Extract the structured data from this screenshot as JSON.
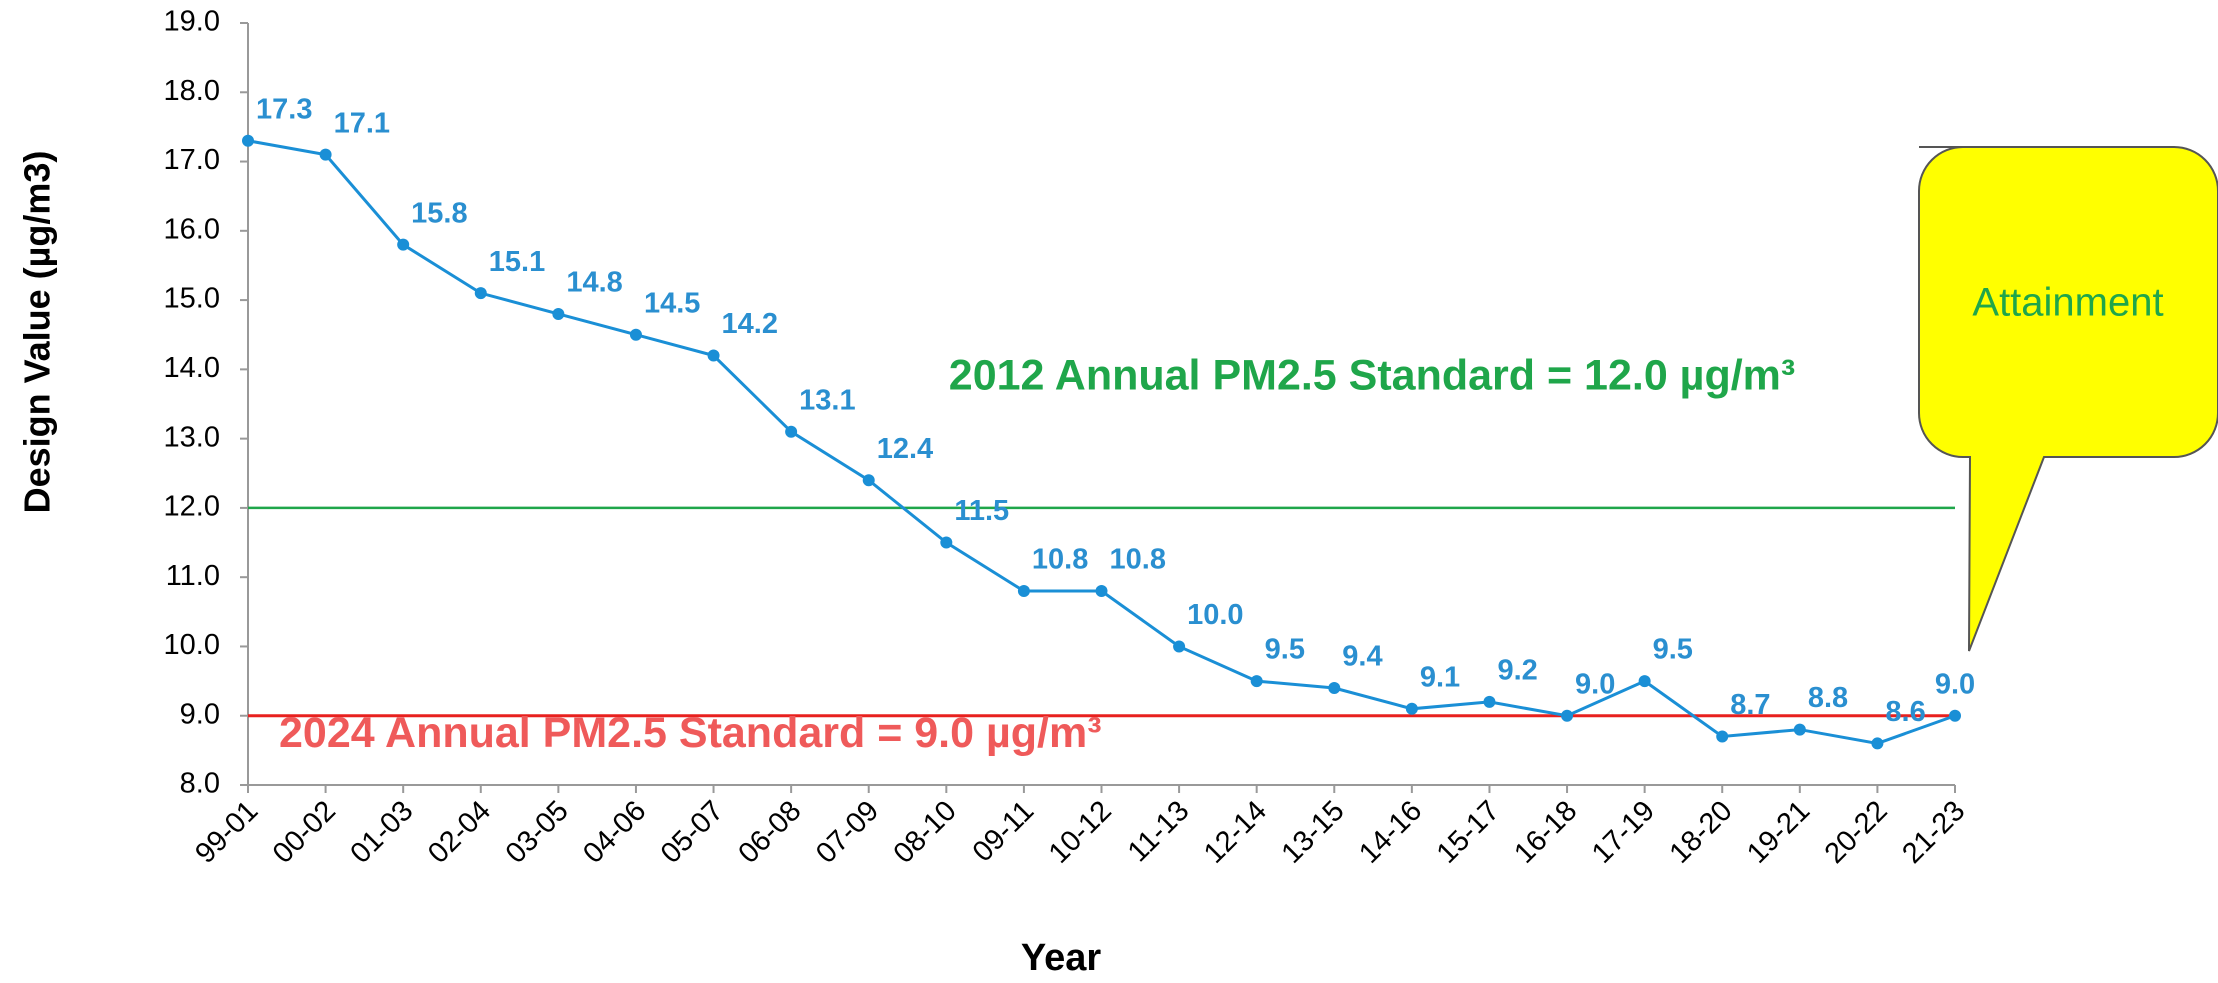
{
  "chart_data": {
    "type": "line",
    "x_label": "Year",
    "y_label": "Design Value (µg/m3)",
    "categories": [
      "99-01",
      "00-02",
      "01-03",
      "02-04",
      "03-05",
      "04-06",
      "05-07",
      "06-08",
      "07-09",
      "08-10",
      "09-11",
      "10-12",
      "11-13",
      "12-14",
      "13-15",
      "14-16",
      "15-17",
      "16-18",
      "17-19",
      "18-20",
      "19-21",
      "20-22",
      "21-23"
    ],
    "series": [
      {
        "color": "#1a8fd6",
        "values": [
          17.3,
          17.1,
          15.8,
          15.1,
          14.8,
          14.5,
          14.2,
          13.1,
          12.4,
          11.5,
          10.8,
          10.8,
          10.0,
          9.5,
          9.4,
          9.1,
          9.2,
          9.0,
          9.5,
          8.7,
          8.8,
          8.6,
          9.0
        ],
        "value_labels": [
          "17.3",
          "17.1",
          "15.8",
          "15.1",
          "14.8",
          "14.5",
          "14.2",
          "13.1",
          "12.4",
          "11.5",
          "10.8",
          "10.8",
          "10.0",
          "9.5",
          "9.4",
          "9.1",
          "9.2",
          "9.0",
          "9.5",
          "8.7",
          "8.8",
          "8.6",
          "9.0"
        ]
      }
    ],
    "ylim": [
      8,
      19
    ],
    "yticks": [
      {
        "value": 8,
        "label": "8.0"
      },
      {
        "value": 9,
        "label": "9.0"
      },
      {
        "value": 10,
        "label": "10.0"
      },
      {
        "value": 11,
        "label": "11.0"
      },
      {
        "value": 12,
        "label": "12.0"
      },
      {
        "value": 13,
        "label": "13.0"
      },
      {
        "value": 14,
        "label": "14.0"
      },
      {
        "value": 15,
        "label": "15.0"
      },
      {
        "value": 16,
        "label": "16.0"
      },
      {
        "value": 17,
        "label": "17.0"
      },
      {
        "value": 18,
        "label": "18.0"
      },
      {
        "value": 19,
        "label": "19.0"
      }
    ],
    "reference_lines": [
      {
        "value": 12,
        "label": "2012 Annual PM2.5 Standard = 12.0 µg/m³",
        "color": "#1fa64a"
      },
      {
        "value": 9,
        "label": "2024 Annual PM2.5 Standard = 9.0 µg/m³",
        "color": "#e8201e",
        "label_color": "#ef5a5a"
      }
    ],
    "callout": "Attainment"
  }
}
